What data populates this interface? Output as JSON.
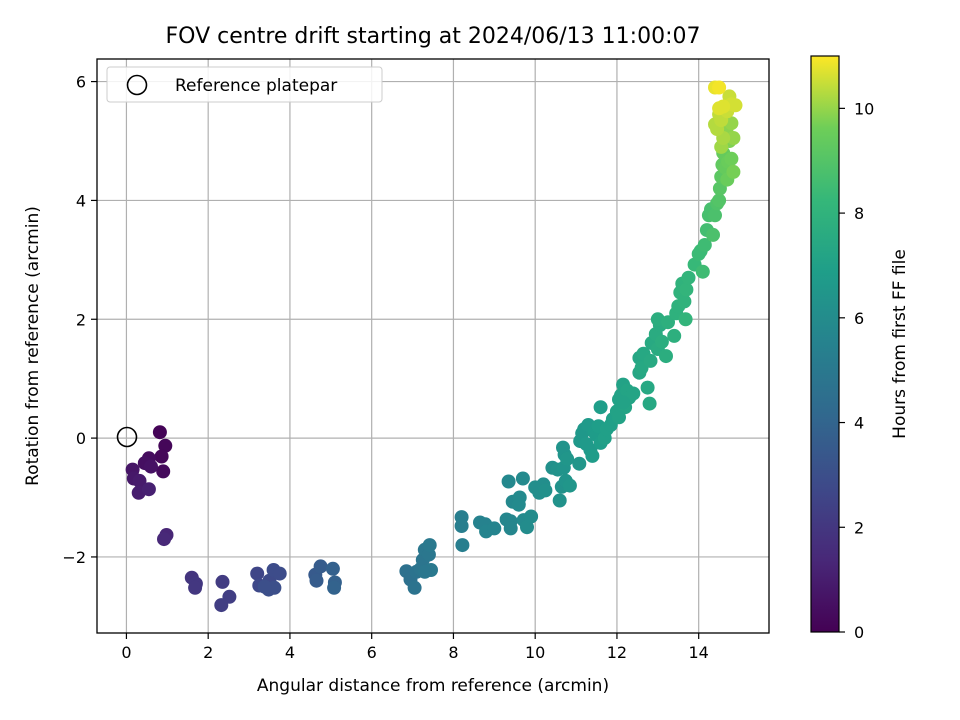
{
  "chart_data": {
    "type": "scatter",
    "title": "FOV centre drift starting at 2024/06/13 11:00:07",
    "xlabel": "Angular distance from reference (arcmin)",
    "ylabel": "Rotation from reference (arcmin)",
    "xlim": [
      -0.72,
      15.72
    ],
    "ylim": [
      -3.28,
      6.38
    ],
    "xticks": [
      0,
      2,
      4,
      6,
      8,
      10,
      12,
      14
    ],
    "yticks": [
      -2,
      0,
      2,
      4,
      6
    ],
    "yticks_display": [
      "−2",
      "0",
      "2",
      "4",
      "6"
    ],
    "grid": true,
    "colormap": "viridis",
    "colorbar": {
      "label": "Hours from first FF file",
      "range": [
        0,
        11
      ],
      "ticks": [
        0,
        2,
        4,
        6,
        8,
        10
      ]
    },
    "legend": {
      "position": "top-left",
      "entries": [
        {
          "label": "Reference platepar",
          "marker": "hollow-circle",
          "color": "#000000"
        }
      ]
    },
    "reference_point": {
      "x": 0,
      "y": 0
    },
    "points": [
      {
        "x": 0.82,
        "y": 0.1,
        "h": 0.1
      },
      {
        "x": 0.95,
        "y": -0.13,
        "h": 0.2
      },
      {
        "x": 0.86,
        "y": -0.31,
        "h": 0.2
      },
      {
        "x": 0.9,
        "y": -0.56,
        "h": 0.3
      },
      {
        "x": 0.55,
        "y": -0.34,
        "h": 0.4
      },
      {
        "x": 0.45,
        "y": -0.42,
        "h": 0.5
      },
      {
        "x": 0.6,
        "y": -0.48,
        "h": 0.6
      },
      {
        "x": 0.15,
        "y": -0.53,
        "h": 0.7
      },
      {
        "x": 0.18,
        "y": -0.68,
        "h": 0.8
      },
      {
        "x": 0.32,
        "y": -0.72,
        "h": 0.9
      },
      {
        "x": 0.3,
        "y": -0.92,
        "h": 1.0
      },
      {
        "x": 0.55,
        "y": -0.86,
        "h": 1.1
      },
      {
        "x": 0.98,
        "y": -1.63,
        "h": 1.3
      },
      {
        "x": 0.92,
        "y": -1.7,
        "h": 1.4
      },
      {
        "x": 1.6,
        "y": -2.35,
        "h": 1.9
      },
      {
        "x": 1.7,
        "y": -2.45,
        "h": 2.0
      },
      {
        "x": 1.68,
        "y": -2.52,
        "h": 2.0
      },
      {
        "x": 2.35,
        "y": -2.42,
        "h": 2.2
      },
      {
        "x": 2.52,
        "y": -2.67,
        "h": 2.3
      },
      {
        "x": 2.32,
        "y": -2.81,
        "h": 2.3
      },
      {
        "x": 3.2,
        "y": -2.28,
        "h": 2.6
      },
      {
        "x": 3.25,
        "y": -2.48,
        "h": 2.7
      },
      {
        "x": 3.5,
        "y": -2.4,
        "h": 2.8
      },
      {
        "x": 3.6,
        "y": -2.22,
        "h": 2.9
      },
      {
        "x": 3.75,
        "y": -2.28,
        "h": 2.9
      },
      {
        "x": 3.48,
        "y": -2.55,
        "h": 3.0
      },
      {
        "x": 3.62,
        "y": -2.52,
        "h": 3.0
      },
      {
        "x": 3.38,
        "y": -2.5,
        "h": 3.0
      },
      {
        "x": 4.62,
        "y": -2.3,
        "h": 3.5
      },
      {
        "x": 4.75,
        "y": -2.16,
        "h": 3.6
      },
      {
        "x": 4.65,
        "y": -2.4,
        "h": 3.6
      },
      {
        "x": 5.05,
        "y": -2.2,
        "h": 3.8
      },
      {
        "x": 5.1,
        "y": -2.43,
        "h": 3.8
      },
      {
        "x": 5.08,
        "y": -2.52,
        "h": 3.9
      },
      {
        "x": 6.85,
        "y": -2.24,
        "h": 4.6
      },
      {
        "x": 6.95,
        "y": -2.38,
        "h": 4.6
      },
      {
        "x": 7.05,
        "y": -2.52,
        "h": 4.7
      },
      {
        "x": 7.1,
        "y": -2.25,
        "h": 4.7
      },
      {
        "x": 7.2,
        "y": -2.2,
        "h": 4.8
      },
      {
        "x": 7.25,
        "y": -2.05,
        "h": 4.8
      },
      {
        "x": 7.3,
        "y": -1.88,
        "h": 4.9
      },
      {
        "x": 7.4,
        "y": -1.96,
        "h": 4.9
      },
      {
        "x": 7.42,
        "y": -1.8,
        "h": 5.0
      },
      {
        "x": 7.45,
        "y": -2.22,
        "h": 5.0
      },
      {
        "x": 7.3,
        "y": -2.25,
        "h": 4.9
      },
      {
        "x": 8.2,
        "y": -1.33,
        "h": 5.3
      },
      {
        "x": 8.2,
        "y": -1.48,
        "h": 5.3
      },
      {
        "x": 8.22,
        "y": -1.8,
        "h": 5.3
      },
      {
        "x": 8.65,
        "y": -1.42,
        "h": 5.5
      },
      {
        "x": 8.78,
        "y": -1.45,
        "h": 5.5
      },
      {
        "x": 8.8,
        "y": -1.57,
        "h": 5.6
      },
      {
        "x": 9.0,
        "y": -1.52,
        "h": 5.6
      },
      {
        "x": 9.3,
        "y": -1.37,
        "h": 5.7
      },
      {
        "x": 9.4,
        "y": -1.4,
        "h": 5.7
      },
      {
        "x": 9.4,
        "y": -1.52,
        "h": 5.7
      },
      {
        "x": 9.35,
        "y": -0.73,
        "h": 5.8
      },
      {
        "x": 9.45,
        "y": -1.07,
        "h": 5.8
      },
      {
        "x": 9.62,
        "y": -1.0,
        "h": 5.9
      },
      {
        "x": 9.7,
        "y": -0.68,
        "h": 5.9
      },
      {
        "x": 9.72,
        "y": -1.38,
        "h": 5.9
      },
      {
        "x": 9.8,
        "y": -1.5,
        "h": 6.0
      },
      {
        "x": 9.6,
        "y": -1.12,
        "h": 5.9
      },
      {
        "x": 9.9,
        "y": -1.32,
        "h": 6.0
      },
      {
        "x": 10.0,
        "y": -0.83,
        "h": 6.1
      },
      {
        "x": 10.1,
        "y": -0.92,
        "h": 6.1
      },
      {
        "x": 10.2,
        "y": -0.78,
        "h": 6.1
      },
      {
        "x": 10.25,
        "y": -0.88,
        "h": 6.2
      },
      {
        "x": 10.42,
        "y": -0.5,
        "h": 6.2
      },
      {
        "x": 10.55,
        "y": -0.53,
        "h": 6.3
      },
      {
        "x": 10.65,
        "y": -0.82,
        "h": 6.3
      },
      {
        "x": 10.6,
        "y": -1.05,
        "h": 6.3
      },
      {
        "x": 10.75,
        "y": -0.72,
        "h": 6.4
      },
      {
        "x": 10.7,
        "y": -0.5,
        "h": 6.4
      },
      {
        "x": 10.68,
        "y": -0.16,
        "h": 6.4
      },
      {
        "x": 10.72,
        "y": -0.28,
        "h": 6.4
      },
      {
        "x": 10.78,
        "y": -0.35,
        "h": 6.5
      },
      {
        "x": 10.85,
        "y": -0.8,
        "h": 6.5
      },
      {
        "x": 11.08,
        "y": -0.43,
        "h": 6.5
      },
      {
        "x": 11.1,
        "y": -0.05,
        "h": 6.6
      },
      {
        "x": 11.2,
        "y": 0.15,
        "h": 6.6
      },
      {
        "x": 11.15,
        "y": 0.08,
        "h": 6.6
      },
      {
        "x": 11.25,
        "y": -0.1,
        "h": 6.7
      },
      {
        "x": 11.3,
        "y": 0.22,
        "h": 6.7
      },
      {
        "x": 11.35,
        "y": -0.2,
        "h": 6.7
      },
      {
        "x": 11.4,
        "y": -0.3,
        "h": 6.8
      },
      {
        "x": 11.45,
        "y": 0.1,
        "h": 6.8
      },
      {
        "x": 11.5,
        "y": 0.05,
        "h": 6.8
      },
      {
        "x": 11.55,
        "y": 0.2,
        "h": 6.9
      },
      {
        "x": 11.6,
        "y": 0.52,
        "h": 6.9
      },
      {
        "x": 11.6,
        "y": -0.08,
        "h": 6.9
      },
      {
        "x": 11.7,
        "y": 0.0,
        "h": 7.0
      },
      {
        "x": 11.75,
        "y": 0.15,
        "h": 7.0
      },
      {
        "x": 11.85,
        "y": 0.22,
        "h": 7.0
      },
      {
        "x": 11.9,
        "y": 0.32,
        "h": 7.0
      },
      {
        "x": 12.0,
        "y": 0.45,
        "h": 7.1
      },
      {
        "x": 12.05,
        "y": 0.65,
        "h": 7.1
      },
      {
        "x": 12.1,
        "y": 0.72,
        "h": 7.1
      },
      {
        "x": 12.15,
        "y": 0.9,
        "h": 7.1
      },
      {
        "x": 12.2,
        "y": 0.52,
        "h": 7.2
      },
      {
        "x": 12.25,
        "y": 0.8,
        "h": 7.2
      },
      {
        "x": 12.3,
        "y": 0.68,
        "h": 7.2
      },
      {
        "x": 12.4,
        "y": 0.75,
        "h": 7.2
      },
      {
        "x": 12.05,
        "y": 0.35,
        "h": 7.1
      },
      {
        "x": 12.15,
        "y": 0.6,
        "h": 7.1
      },
      {
        "x": 12.55,
        "y": 1.1,
        "h": 7.3
      },
      {
        "x": 12.55,
        "y": 1.35,
        "h": 7.3
      },
      {
        "x": 12.65,
        "y": 1.42,
        "h": 7.4
      },
      {
        "x": 12.6,
        "y": 1.18,
        "h": 7.4
      },
      {
        "x": 12.75,
        "y": 0.85,
        "h": 7.4
      },
      {
        "x": 12.8,
        "y": 0.58,
        "h": 7.4
      },
      {
        "x": 12.82,
        "y": 1.3,
        "h": 7.5
      },
      {
        "x": 12.85,
        "y": 1.6,
        "h": 7.5
      },
      {
        "x": 12.95,
        "y": 1.75,
        "h": 7.6
      },
      {
        "x": 13.0,
        "y": 1.5,
        "h": 7.6
      },
      {
        "x": 13.05,
        "y": 1.9,
        "h": 7.6
      },
      {
        "x": 13.0,
        "y": 2.0,
        "h": 7.7
      },
      {
        "x": 13.1,
        "y": 1.62,
        "h": 7.7
      },
      {
        "x": 13.2,
        "y": 1.38,
        "h": 7.7
      },
      {
        "x": 13.25,
        "y": 1.95,
        "h": 7.8
      },
      {
        "x": 13.4,
        "y": 1.72,
        "h": 7.8
      },
      {
        "x": 13.45,
        "y": 2.1,
        "h": 7.9
      },
      {
        "x": 13.5,
        "y": 2.22,
        "h": 7.9
      },
      {
        "x": 13.55,
        "y": 2.45,
        "h": 8.0
      },
      {
        "x": 13.6,
        "y": 2.6,
        "h": 8.0
      },
      {
        "x": 13.65,
        "y": 2.3,
        "h": 8.0
      },
      {
        "x": 13.7,
        "y": 2.5,
        "h": 8.1
      },
      {
        "x": 13.68,
        "y": 2.0,
        "h": 8.1
      },
      {
        "x": 13.75,
        "y": 2.7,
        "h": 8.1
      },
      {
        "x": 13.9,
        "y": 2.92,
        "h": 8.3
      },
      {
        "x": 14.0,
        "y": 3.1,
        "h": 8.4
      },
      {
        "x": 14.05,
        "y": 3.15,
        "h": 8.4
      },
      {
        "x": 14.1,
        "y": 2.8,
        "h": 8.5
      },
      {
        "x": 14.15,
        "y": 3.25,
        "h": 8.5
      },
      {
        "x": 14.2,
        "y": 3.5,
        "h": 8.6
      },
      {
        "x": 14.25,
        "y": 3.75,
        "h": 8.7
      },
      {
        "x": 14.3,
        "y": 3.85,
        "h": 8.7
      },
      {
        "x": 14.35,
        "y": 3.42,
        "h": 8.8
      },
      {
        "x": 14.4,
        "y": 3.75,
        "h": 8.8
      },
      {
        "x": 14.45,
        "y": 3.95,
        "h": 8.9
      },
      {
        "x": 14.5,
        "y": 4.0,
        "h": 9.0
      },
      {
        "x": 14.52,
        "y": 4.2,
        "h": 9.1
      },
      {
        "x": 14.55,
        "y": 4.4,
        "h": 9.2
      },
      {
        "x": 14.58,
        "y": 4.6,
        "h": 9.3
      },
      {
        "x": 14.6,
        "y": 4.8,
        "h": 9.4
      },
      {
        "x": 14.65,
        "y": 4.55,
        "h": 9.4
      },
      {
        "x": 14.7,
        "y": 4.35,
        "h": 9.5
      },
      {
        "x": 14.72,
        "y": 4.65,
        "h": 9.5
      },
      {
        "x": 14.8,
        "y": 4.7,
        "h": 9.6
      },
      {
        "x": 14.85,
        "y": 4.48,
        "h": 9.7
      },
      {
        "x": 14.75,
        "y": 5.0,
        "h": 9.8
      },
      {
        "x": 14.68,
        "y": 5.2,
        "h": 9.9
      },
      {
        "x": 14.8,
        "y": 5.3,
        "h": 10.0
      },
      {
        "x": 14.85,
        "y": 5.05,
        "h": 10.0
      },
      {
        "x": 14.55,
        "y": 4.9,
        "h": 10.1
      },
      {
        "x": 14.6,
        "y": 5.05,
        "h": 10.2
      },
      {
        "x": 14.45,
        "y": 5.2,
        "h": 10.3
      },
      {
        "x": 14.4,
        "y": 5.28,
        "h": 10.3
      },
      {
        "x": 14.5,
        "y": 5.45,
        "h": 10.4
      },
      {
        "x": 14.55,
        "y": 5.35,
        "h": 10.4
      },
      {
        "x": 14.7,
        "y": 5.5,
        "h": 10.5
      },
      {
        "x": 14.75,
        "y": 5.75,
        "h": 10.5
      },
      {
        "x": 14.8,
        "y": 5.62,
        "h": 10.6
      },
      {
        "x": 14.9,
        "y": 5.6,
        "h": 10.6
      },
      {
        "x": 14.6,
        "y": 5.58,
        "h": 10.7
      },
      {
        "x": 14.5,
        "y": 5.55,
        "h": 10.7
      },
      {
        "x": 14.4,
        "y": 5.9,
        "h": 10.8
      },
      {
        "x": 14.5,
        "y": 5.9,
        "h": 10.9
      }
    ]
  }
}
